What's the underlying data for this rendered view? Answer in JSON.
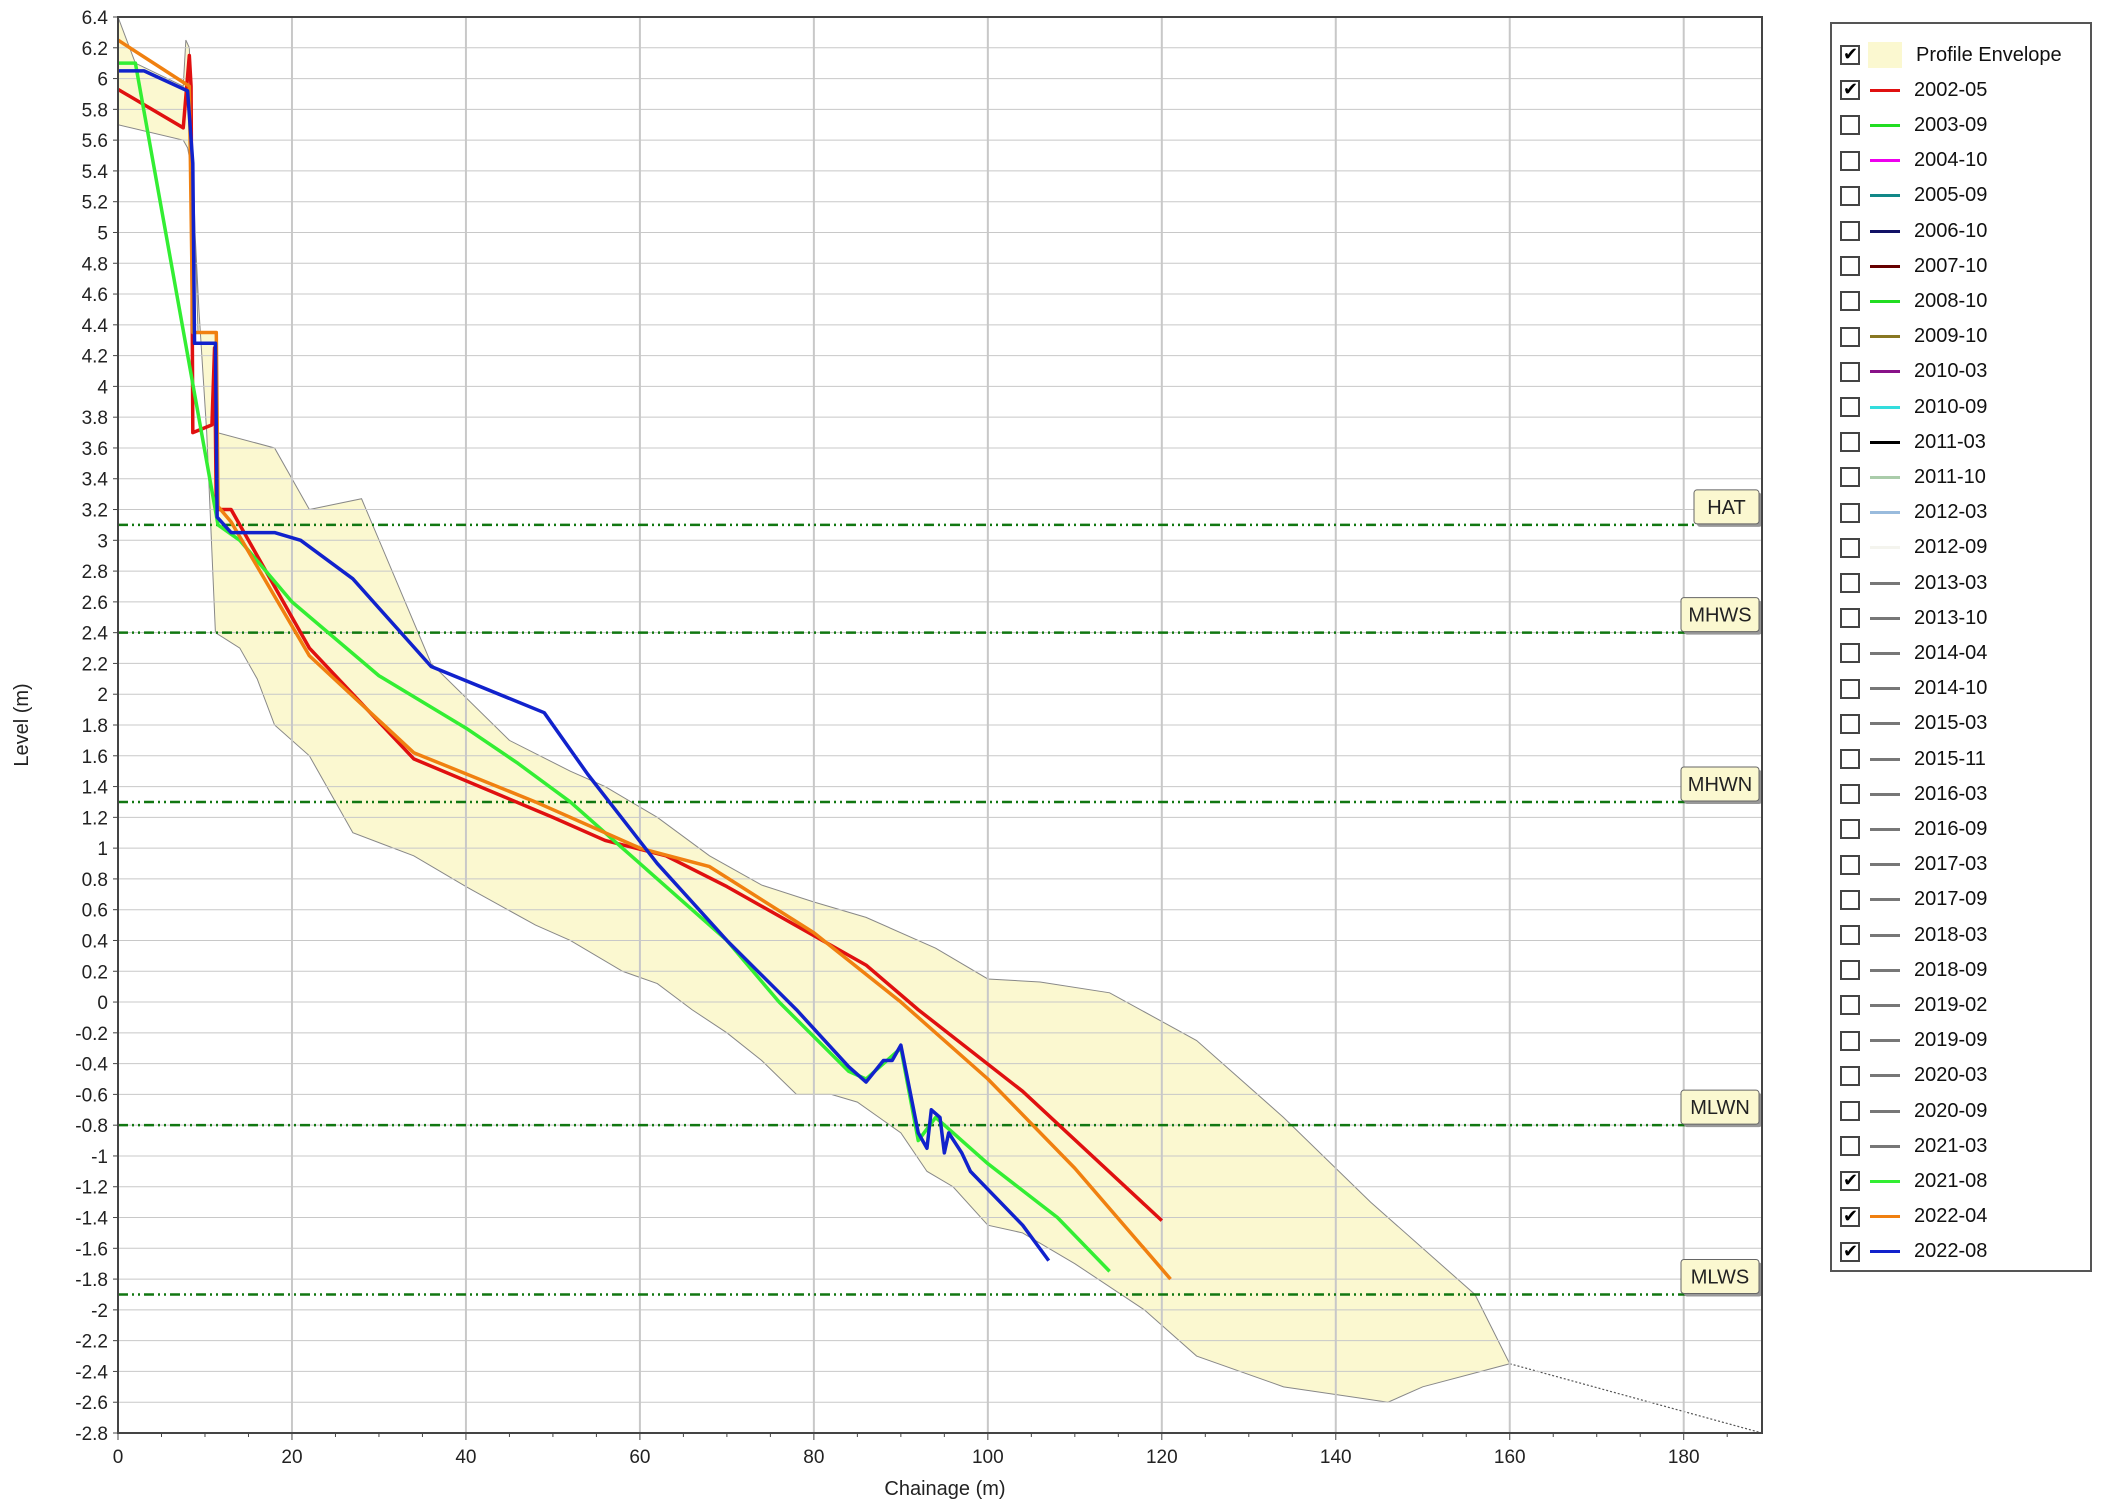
{
  "chart_data": {
    "type": "line",
    "title": "",
    "xlabel": "Chainage (m)",
    "ylabel": "Level (m)",
    "xlim": [
      0,
      189
    ],
    "ylim": [
      -2.8,
      6.4
    ],
    "xticks": [
      0,
      20,
      40,
      60,
      80,
      100,
      120,
      140,
      160,
      180
    ],
    "yticks": [
      6.4,
      6.2,
      6,
      5.8,
      5.6,
      5.4,
      5.2,
      5,
      4.8,
      4.6,
      4.4,
      4.2,
      4,
      3.8,
      3.6,
      3.4,
      3.2,
      3,
      2.8,
      2.6,
      2.4,
      2.2,
      2,
      1.8,
      1.6,
      1.4,
      1.2,
      1,
      0.8,
      0.6,
      0.4,
      0.2,
      0,
      -0.2,
      -0.4,
      -0.6,
      -0.8,
      -1,
      -1.2,
      -1.4,
      -1.6,
      -1.8,
      -2,
      -2.2,
      -2.4,
      -2.6,
      -2.8
    ],
    "grid": true,
    "legend_position": "right",
    "envelope": {
      "name": "Profile Envelope",
      "color": "#fbf8d0",
      "upper": [
        [
          0,
          6.4
        ],
        [
          2,
          6.1
        ],
        [
          7.5,
          5.95
        ],
        [
          7.8,
          6.25
        ],
        [
          8.2,
          6.2
        ],
        [
          8.6,
          5.5
        ],
        [
          9.2,
          4.35
        ],
        [
          11.2,
          4.35
        ],
        [
          11.4,
          3.7
        ],
        [
          18,
          3.6
        ],
        [
          22,
          3.2
        ],
        [
          28,
          3.27
        ],
        [
          36,
          2.2
        ],
        [
          45,
          1.7
        ],
        [
          52,
          1.5
        ],
        [
          56,
          1.4
        ],
        [
          62,
          1.2
        ],
        [
          68,
          0.95
        ],
        [
          74,
          0.76
        ],
        [
          80,
          0.65
        ],
        [
          86,
          0.55
        ],
        [
          94,
          0.35
        ],
        [
          100,
          0.15
        ],
        [
          106,
          0.13
        ],
        [
          114,
          0.06
        ],
        [
          124,
          -0.25
        ],
        [
          134,
          -0.75
        ],
        [
          144,
          -1.3
        ],
        [
          156,
          -1.9
        ],
        [
          160,
          -2.35
        ]
      ],
      "lower": [
        [
          0,
          5.7
        ],
        [
          7.5,
          5.6
        ],
        [
          8,
          5.55
        ],
        [
          8.5,
          5.4
        ],
        [
          9.3,
          4.5
        ],
        [
          10.2,
          3.7
        ],
        [
          11.2,
          2.4
        ],
        [
          14,
          2.3
        ],
        [
          16,
          2.1
        ],
        [
          18,
          1.8
        ],
        [
          22,
          1.6
        ],
        [
          27,
          1.1
        ],
        [
          34,
          0.95
        ],
        [
          40,
          0.75
        ],
        [
          48,
          0.5
        ],
        [
          52,
          0.4
        ],
        [
          58,
          0.2
        ],
        [
          62,
          0.12
        ],
        [
          66,
          -0.05
        ],
        [
          70,
          -0.2
        ],
        [
          74,
          -0.38
        ],
        [
          78,
          -0.6
        ],
        [
          82,
          -0.6
        ],
        [
          85,
          -0.65
        ],
        [
          90,
          -0.85
        ],
        [
          93,
          -1.1
        ],
        [
          96,
          -1.2
        ],
        [
          100,
          -1.45
        ],
        [
          104,
          -1.5
        ],
        [
          110,
          -1.7
        ],
        [
          118,
          -2.0
        ],
        [
          124,
          -2.3
        ],
        [
          134,
          -2.5
        ],
        [
          146,
          -2.6
        ],
        [
          150,
          -2.5
        ],
        [
          160,
          -2.35
        ]
      ],
      "extension": [
        [
          160,
          -2.35
        ],
        [
          189,
          -2.8
        ]
      ]
    },
    "reference_lines": [
      {
        "name": "HAT",
        "y": 3.1
      },
      {
        "name": "MHWS",
        "y": 2.4
      },
      {
        "name": "MHWN",
        "y": 1.3
      },
      {
        "name": "MLWN",
        "y": -0.8
      },
      {
        "name": "MLWS",
        "y": -1.9
      }
    ],
    "series": [
      {
        "name": "2002-05",
        "color": "#e01010",
        "checked": true,
        "points": [
          [
            0,
            5.93
          ],
          [
            7.5,
            5.68
          ],
          [
            8.2,
            6.15
          ],
          [
            8.4,
            5.95
          ],
          [
            8.6,
            3.7
          ],
          [
            10.8,
            3.75
          ],
          [
            11.1,
            4.25
          ],
          [
            11.3,
            3.2
          ],
          [
            13,
            3.2
          ],
          [
            22,
            2.3
          ],
          [
            34,
            1.58
          ],
          [
            50,
            1.2
          ],
          [
            56,
            1.05
          ],
          [
            63,
            0.95
          ],
          [
            70,
            0.75
          ],
          [
            86,
            0.24
          ],
          [
            92,
            -0.05
          ],
          [
            104,
            -0.58
          ],
          [
            120,
            -1.42
          ]
        ]
      },
      {
        "name": "2003-09",
        "color": "#22dd22",
        "checked": false
      },
      {
        "name": "2004-10",
        "color": "#ee00ee",
        "checked": false
      },
      {
        "name": "2005-09",
        "color": "#118888",
        "checked": false
      },
      {
        "name": "2006-10",
        "color": "#111166",
        "checked": false
      },
      {
        "name": "2007-10",
        "color": "#660000",
        "checked": false
      },
      {
        "name": "2008-10",
        "color": "#22dd22",
        "checked": false
      },
      {
        "name": "2009-10",
        "color": "#887722",
        "checked": false
      },
      {
        "name": "2010-03",
        "color": "#881188",
        "checked": false
      },
      {
        "name": "2010-09",
        "color": "#33dddd",
        "checked": false
      },
      {
        "name": "2011-03",
        "color": "#000000",
        "checked": false
      },
      {
        "name": "2011-10",
        "color": "#aaccaa",
        "checked": false
      },
      {
        "name": "2012-03",
        "color": "#99bbdd",
        "checked": false
      },
      {
        "name": "2012-09",
        "color": "#f4f4ee",
        "checked": false
      },
      {
        "name": "2013-03",
        "color": "#777777",
        "checked": false
      },
      {
        "name": "2013-10",
        "color": "#777777",
        "checked": false
      },
      {
        "name": "2014-04",
        "color": "#777777",
        "checked": false
      },
      {
        "name": "2014-10",
        "color": "#777777",
        "checked": false
      },
      {
        "name": "2015-03",
        "color": "#777777",
        "checked": false
      },
      {
        "name": "2015-11",
        "color": "#777777",
        "checked": false
      },
      {
        "name": "2016-03",
        "color": "#777777",
        "checked": false
      },
      {
        "name": "2016-09",
        "color": "#777777",
        "checked": false
      },
      {
        "name": "2017-03",
        "color": "#777777",
        "checked": false
      },
      {
        "name": "2017-09",
        "color": "#777777",
        "checked": false
      },
      {
        "name": "2018-03",
        "color": "#777777",
        "checked": false
      },
      {
        "name": "2018-09",
        "color": "#777777",
        "checked": false
      },
      {
        "name": "2019-02",
        "color": "#777777",
        "checked": false
      },
      {
        "name": "2019-09",
        "color": "#777777",
        "checked": false
      },
      {
        "name": "2020-03",
        "color": "#777777",
        "checked": false
      },
      {
        "name": "2020-09",
        "color": "#777777",
        "checked": false
      },
      {
        "name": "2021-03",
        "color": "#777777",
        "checked": false
      },
      {
        "name": "2021-08",
        "color": "#33ee33",
        "checked": true,
        "points": [
          [
            0,
            6.1
          ],
          [
            2,
            6.1
          ],
          [
            11.5,
            3.1
          ],
          [
            14,
            3.0
          ],
          [
            20,
            2.6
          ],
          [
            30,
            2.12
          ],
          [
            40,
            1.78
          ],
          [
            46,
            1.55
          ],
          [
            52,
            1.3
          ],
          [
            58,
            1.0
          ],
          [
            64,
            0.7
          ],
          [
            70,
            0.4
          ],
          [
            76,
            0.0
          ],
          [
            84,
            -0.45
          ],
          [
            86,
            -0.5
          ],
          [
            88,
            -0.4
          ],
          [
            90,
            -0.3
          ],
          [
            92,
            -0.9
          ],
          [
            94,
            -0.75
          ],
          [
            96,
            -0.85
          ],
          [
            100,
            -1.05
          ],
          [
            108,
            -1.4
          ],
          [
            114,
            -1.75
          ]
        ]
      },
      {
        "name": "2022-04",
        "color": "#f08010",
        "checked": true,
        "points": [
          [
            0,
            6.25
          ],
          [
            8.2,
            5.95
          ],
          [
            8.6,
            4.35
          ],
          [
            11.3,
            4.35
          ],
          [
            11.5,
            3.22
          ],
          [
            13,
            3.12
          ],
          [
            22,
            2.25
          ],
          [
            34,
            1.62
          ],
          [
            48,
            1.3
          ],
          [
            60,
            1.0
          ],
          [
            68,
            0.88
          ],
          [
            80,
            0.45
          ],
          [
            90,
            0.0
          ],
          [
            100,
            -0.5
          ],
          [
            110,
            -1.08
          ],
          [
            121,
            -1.8
          ]
        ]
      },
      {
        "name": "2022-08",
        "color": "#1122cc",
        "checked": true,
        "points": [
          [
            0,
            6.05
          ],
          [
            3,
            6.05
          ],
          [
            8,
            5.92
          ],
          [
            8.6,
            5.45
          ],
          [
            8.8,
            4.28
          ],
          [
            11.2,
            4.28
          ],
          [
            11.4,
            3.15
          ],
          [
            13,
            3.05
          ],
          [
            18,
            3.05
          ],
          [
            21,
            3.0
          ],
          [
            27,
            2.75
          ],
          [
            36,
            2.18
          ],
          [
            49,
            1.88
          ],
          [
            54,
            1.48
          ],
          [
            62,
            0.9
          ],
          [
            70,
            0.4
          ],
          [
            78,
            -0.05
          ],
          [
            84,
            -0.42
          ],
          [
            86,
            -0.52
          ],
          [
            88,
            -0.38
          ],
          [
            89,
            -0.38
          ],
          [
            90,
            -0.28
          ],
          [
            92,
            -0.85
          ],
          [
            93,
            -0.95
          ],
          [
            93.5,
            -0.7
          ],
          [
            94.5,
            -0.75
          ],
          [
            95,
            -0.98
          ],
          [
            95.5,
            -0.85
          ],
          [
            97,
            -0.98
          ],
          [
            98,
            -1.1
          ],
          [
            104,
            -1.45
          ],
          [
            107,
            -1.68
          ]
        ]
      }
    ]
  },
  "legend": {
    "envelope_label": "Profile Envelope",
    "envelope_checked": true
  }
}
